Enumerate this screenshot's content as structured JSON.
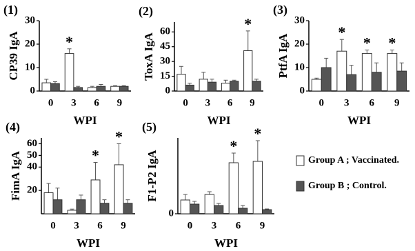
{
  "chart_data": [
    {
      "type": "bar",
      "panel": "(1)",
      "ylabel": "CP39 IgA",
      "xlabel": "WPI",
      "categories": [
        "0",
        "3",
        "6",
        "9"
      ],
      "ylim": [
        0,
        30
      ],
      "yticks": [
        0,
        10,
        20,
        30
      ],
      "series": [
        {
          "color": "#ffffff",
          "values": [
            3.5,
            16,
            1.5,
            2
          ],
          "errors": [
            1.5,
            2,
            0.5,
            0.3
          ],
          "annotations": [
            null,
            "*",
            null,
            null
          ]
        },
        {
          "color": "#555555",
          "values": [
            3.2,
            1.5,
            2,
            2
          ],
          "errors": [
            0.8,
            0.5,
            0.8,
            0.3
          ]
        }
      ]
    },
    {
      "type": "bar",
      "panel": "(2)",
      "ylabel": "ToxA IgA",
      "xlabel": "WPI",
      "categories": [
        "0",
        "3",
        "6",
        "9"
      ],
      "ylim": [
        0,
        70
      ],
      "yticks": [
        0,
        15,
        30,
        45,
        60
      ],
      "series": [
        {
          "color": "#ffffff",
          "values": [
            17,
            12,
            8,
            41
          ],
          "errors": [
            8,
            7,
            3,
            20
          ],
          "annotations": [
            null,
            null,
            null,
            "*"
          ]
        },
        {
          "color": "#555555",
          "values": [
            6,
            9,
            10,
            10
          ],
          "errors": [
            2,
            3,
            1,
            2
          ]
        }
      ]
    },
    {
      "type": "bar",
      "panel": "(3)",
      "ylabel": "PtfA IgA",
      "xlabel": "WPI",
      "categories": [
        "0",
        "3",
        "6",
        "9"
      ],
      "ylim": [
        0,
        30
      ],
      "yticks": [
        0,
        10,
        20,
        30
      ],
      "series": [
        {
          "color": "#ffffff",
          "values": [
            5,
            17,
            16,
            16
          ],
          "errors": [
            0.5,
            5,
            1.5,
            1.5
          ],
          "annotations": [
            null,
            "*",
            "*",
            "*"
          ]
        },
        {
          "color": "#555555",
          "values": [
            10,
            7,
            8,
            8.5
          ],
          "errors": [
            4,
            4,
            4,
            3.5
          ]
        }
      ]
    },
    {
      "type": "bar",
      "panel": "(4)",
      "ylabel": "FimA IgA",
      "xlabel": "WPI",
      "categories": [
        "0",
        "3",
        "6",
        "9"
      ],
      "ylim": [
        0,
        65
      ],
      "yticks": [
        20,
        40,
        50,
        60
      ],
      "series": [
        {
          "color": "#ffffff",
          "values": [
            18,
            3,
            29,
            42
          ],
          "errors": [
            8,
            1,
            15,
            18
          ],
          "annotations": [
            null,
            null,
            "*",
            "*"
          ]
        },
        {
          "color": "#555555",
          "values": [
            12,
            12,
            9,
            9
          ],
          "errors": [
            10,
            4,
            3,
            3
          ]
        }
      ]
    },
    {
      "type": "bar",
      "panel": "(5)",
      "ylabel": "F1-P2 IgA",
      "xlabel": "WPI",
      "categories": [
        "0",
        "3",
        "6",
        "9"
      ],
      "ylim": [
        0,
        55
      ],
      "yticks": [
        0
      ],
      "series": [
        {
          "color": "#ffffff",
          "values": [
            10,
            14,
            37,
            38
          ],
          "errors": [
            4,
            2,
            7,
            15
          ],
          "annotations": [
            null,
            null,
            "*",
            "*"
          ]
        },
        {
          "color": "#555555",
          "values": [
            7,
            6,
            4,
            3
          ],
          "errors": [
            2,
            1.5,
            2,
            0.5
          ]
        }
      ]
    }
  ],
  "legend": [
    {
      "name": "Group A ; Vaccinated.",
      "color": "#ffffff"
    },
    {
      "name": "Group B ; Control.",
      "color": "#555555"
    }
  ]
}
